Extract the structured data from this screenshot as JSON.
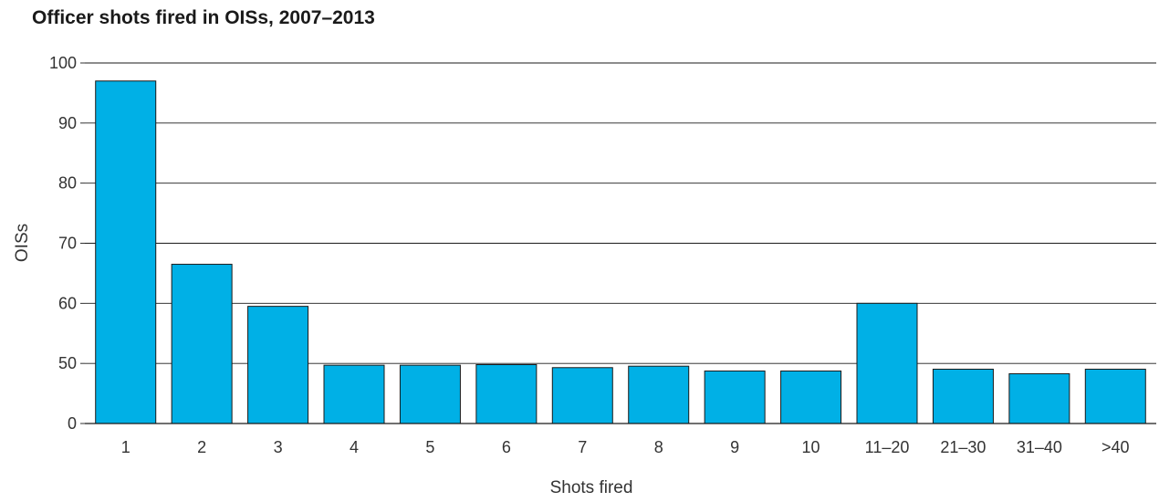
{
  "chart_data": {
    "type": "bar",
    "title": "Officer shots fired in OISs, 2007–2013",
    "xlabel": "Shots fired",
    "ylabel": "OISs",
    "categories": [
      "1",
      "2",
      "3",
      "4",
      "5",
      "6",
      "7",
      "8",
      "9",
      "10",
      "11–20",
      "21–30",
      "31–40",
      ">40"
    ],
    "values": [
      97,
      66.5,
      59.5,
      48.5,
      48.5,
      49,
      46.5,
      47.7,
      43.7,
      43.7,
      60,
      45.2,
      41.4,
      45.2
    ],
    "yticks": [
      "0",
      "50",
      "60",
      "70",
      "80",
      "90",
      "100"
    ],
    "ylim": [
      0,
      100
    ],
    "y_axis_break": "scale jumps from 0 to 50 (0–50 segment drawn at same height as 10 units)",
    "grid": true,
    "bar_color": "#00b0e6",
    "bar_stroke": "#1a1a1a"
  }
}
